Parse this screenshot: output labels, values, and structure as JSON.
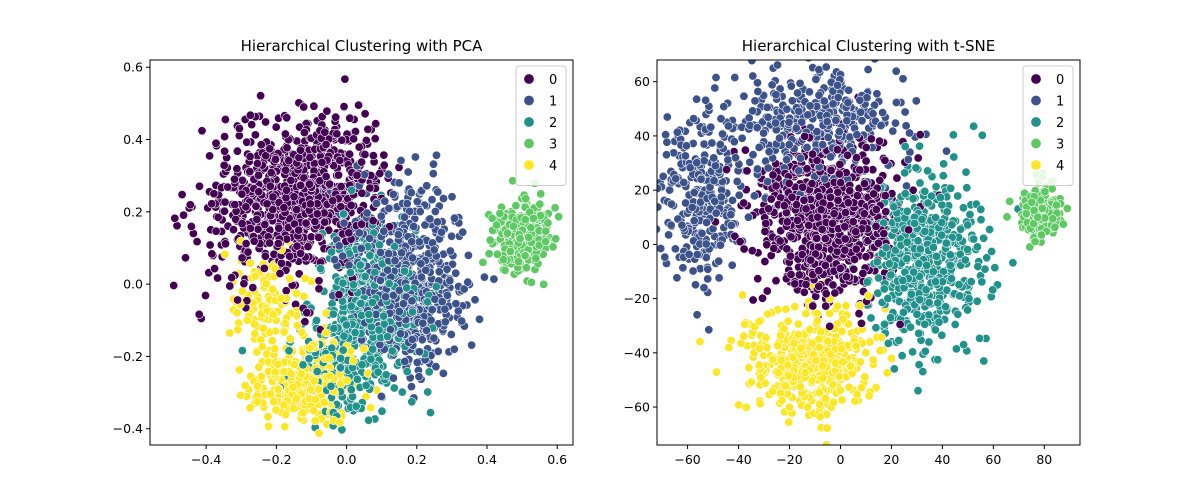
{
  "chart_data": [
    {
      "type": "scatter",
      "title": "Hierarchical Clustering with PCA",
      "xlabel": "",
      "ylabel": "",
      "xlim": [
        -0.56,
        0.645
      ],
      "ylim": [
        -0.445,
        0.62
      ],
      "xticks": [
        -0.4,
        -0.2,
        0.0,
        0.2,
        0.4,
        0.6
      ],
      "yticks": [
        -0.4,
        -0.2,
        0.0,
        0.2,
        0.4,
        0.6
      ],
      "xtick_labels": [
        "−0.4",
        "−0.2",
        "0.0",
        "0.2",
        "0.4",
        "0.6"
      ],
      "ytick_labels": [
        "−0.4",
        "−0.2",
        "0.0",
        "0.2",
        "0.4",
        "0.6"
      ],
      "grid": false,
      "legend_position": "top-right",
      "series": [
        {
          "name": "0",
          "color": "#440154",
          "count": 900,
          "clusters": [
            {
              "cx": -0.18,
              "cy": 0.22,
              "sx": 0.12,
              "sy": 0.11,
              "w": 0.7
            },
            {
              "cx": -0.05,
              "cy": 0.3,
              "sx": 0.08,
              "sy": 0.1,
              "w": 0.3
            }
          ]
        },
        {
          "name": "1",
          "color": "#3b528b",
          "count": 650,
          "clusters": [
            {
              "cx": 0.16,
              "cy": 0.07,
              "sx": 0.09,
              "sy": 0.11,
              "w": 0.7
            },
            {
              "cx": 0.2,
              "cy": -0.1,
              "sx": 0.07,
              "sy": 0.08,
              "w": 0.3
            }
          ]
        },
        {
          "name": "2",
          "color": "#21918c",
          "count": 550,
          "clusters": [
            {
              "cx": 0.06,
              "cy": -0.03,
              "sx": 0.07,
              "sy": 0.1,
              "w": 0.6
            },
            {
              "cx": 0.0,
              "cy": -0.22,
              "sx": 0.08,
              "sy": 0.07,
              "w": 0.4
            }
          ]
        },
        {
          "name": "3",
          "color": "#5ec962",
          "count": 260,
          "clusters": [
            {
              "cx": 0.5,
              "cy": 0.13,
              "sx": 0.04,
              "sy": 0.05,
              "w": 1.0
            }
          ]
        },
        {
          "name": "4",
          "color": "#fde725",
          "count": 450,
          "clusters": [
            {
              "cx": -0.12,
              "cy": -0.27,
              "sx": 0.07,
              "sy": 0.06,
              "w": 0.75
            },
            {
              "cx": -0.22,
              "cy": -0.05,
              "sx": 0.06,
              "sy": 0.07,
              "w": 0.25
            }
          ]
        }
      ]
    },
    {
      "type": "scatter",
      "title": "Hierarchical Clustering with t-SNE",
      "xlabel": "",
      "ylabel": "",
      "xlim": [
        -72,
        94
      ],
      "ylim": [
        -74,
        68
      ],
      "xticks": [
        -60,
        -40,
        -20,
        0,
        20,
        40,
        60,
        80
      ],
      "yticks": [
        -60,
        -40,
        -20,
        0,
        20,
        40,
        60
      ],
      "xtick_labels": [
        "−60",
        "−40",
        "−20",
        "0",
        "20",
        "40",
        "60",
        "80"
      ],
      "ytick_labels": [
        "−60",
        "−40",
        "−20",
        "0",
        "20",
        "40",
        "60"
      ],
      "grid": false,
      "legend_position": "top-right",
      "series": [
        {
          "name": "0",
          "color": "#440154",
          "count": 900,
          "clusters": [
            {
              "cx": -5,
              "cy": 10,
              "sx": 13,
              "sy": 14,
              "w": 1.0
            }
          ]
        },
        {
          "name": "1",
          "color": "#3b528b",
          "count": 650,
          "clusters": [
            {
              "cx": -10,
              "cy": 45,
              "sx": 18,
              "sy": 10,
              "w": 0.55
            },
            {
              "cx": -55,
              "cy": 15,
              "sx": 8,
              "sy": 15,
              "w": 0.45
            }
          ]
        },
        {
          "name": "2",
          "color": "#21918c",
          "count": 550,
          "clusters": [
            {
              "cx": 32,
              "cy": -5,
              "sx": 11,
              "sy": 16,
              "w": 1.0
            }
          ]
        },
        {
          "name": "3",
          "color": "#5ec962",
          "count": 260,
          "clusters": [
            {
              "cx": 78,
              "cy": 12,
              "sx": 3.5,
              "sy": 4.5,
              "w": 1.0
            }
          ]
        },
        {
          "name": "4",
          "color": "#fde725",
          "count": 450,
          "clusters": [
            {
              "cx": -10,
              "cy": -43,
              "sx": 12,
              "sy": 9,
              "w": 1.0
            }
          ]
        }
      ]
    }
  ]
}
